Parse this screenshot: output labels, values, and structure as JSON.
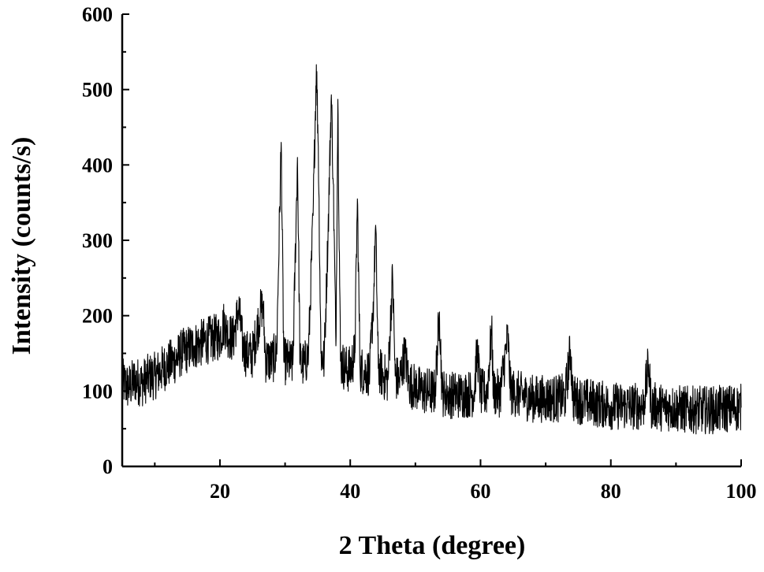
{
  "chart_data": {
    "type": "line",
    "title": "",
    "xlabel": "2 Theta (degree)",
    "ylabel": "Intensity (counts/s)",
    "xlim": [
      5,
      100
    ],
    "ylim": [
      0,
      600
    ],
    "x_ticks": [
      20,
      40,
      60,
      80,
      100
    ],
    "x_minor_ticks": [
      10,
      30,
      50,
      70,
      90
    ],
    "y_ticks": [
      0,
      100,
      200,
      300,
      400,
      500,
      600
    ],
    "y_minor_ticks": [
      50,
      150,
      250,
      350,
      450,
      550
    ],
    "grid": false,
    "legend": "none",
    "line_color": "#000000",
    "series": [
      {
        "points": [
          [
            5,
            112
          ],
          [
            6,
            105
          ],
          [
            7,
            115
          ],
          [
            8,
            110
          ],
          [
            9,
            118
          ],
          [
            10,
            120
          ],
          [
            11,
            128
          ],
          [
            12,
            135
          ],
          [
            13,
            140
          ],
          [
            14,
            150
          ],
          [
            15,
            155
          ],
          [
            16,
            160
          ],
          [
            17,
            163
          ],
          [
            18,
            167
          ],
          [
            19,
            170
          ],
          [
            20,
            172
          ],
          [
            20.7,
            192
          ],
          [
            21,
            178
          ],
          [
            22,
            168
          ],
          [
            22.9,
            210
          ],
          [
            23.5,
            160
          ],
          [
            24,
            150
          ],
          [
            25,
            148
          ],
          [
            26.2,
            205
          ],
          [
            26.6,
            215
          ],
          [
            27,
            142
          ],
          [
            28,
            140
          ],
          [
            28.7,
            150
          ],
          [
            29.4,
            430
          ],
          [
            29.8,
            140
          ],
          [
            30.5,
            138
          ],
          [
            31.2,
            135
          ],
          [
            31.9,
            410
          ],
          [
            32.3,
            135
          ],
          [
            33,
            135
          ],
          [
            33.6,
            150
          ],
          [
            34.3,
            333
          ],
          [
            34.8,
            533
          ],
          [
            35.1,
            425
          ],
          [
            35.5,
            150
          ],
          [
            36,
            140
          ],
          [
            36.6,
            310
          ],
          [
            37.1,
            493
          ],
          [
            37.4,
            375
          ],
          [
            37.8,
            160
          ],
          [
            38.1,
            487
          ],
          [
            38.5,
            140
          ],
          [
            39.2,
            130
          ],
          [
            40,
            128
          ],
          [
            40.7,
            150
          ],
          [
            41.1,
            355
          ],
          [
            41.5,
            130
          ],
          [
            42.2,
            125
          ],
          [
            43,
            125
          ],
          [
            43.6,
            225
          ],
          [
            43.9,
            320
          ],
          [
            44.3,
            130
          ],
          [
            45,
            120
          ],
          [
            45.8,
            115
          ],
          [
            46.5,
            255
          ],
          [
            46.9,
            120
          ],
          [
            47.5,
            112
          ],
          [
            48.4,
            150
          ],
          [
            49,
            110
          ],
          [
            50,
            105
          ],
          [
            51,
            100
          ],
          [
            52,
            100
          ],
          [
            53,
            98
          ],
          [
            53.7,
            205
          ],
          [
            54.1,
            98
          ],
          [
            55,
            95
          ],
          [
            56,
            95
          ],
          [
            57,
            95
          ],
          [
            58,
            96
          ],
          [
            59,
            97
          ],
          [
            59.5,
            155
          ],
          [
            60,
            98
          ],
          [
            61,
            97
          ],
          [
            61.7,
            180
          ],
          [
            62,
            98
          ],
          [
            63,
            97
          ],
          [
            64.2,
            172
          ],
          [
            64.6,
            100
          ],
          [
            65,
            98
          ],
          [
            66,
            95
          ],
          [
            67,
            92
          ],
          [
            68,
            90
          ],
          [
            69,
            90
          ],
          [
            70,
            90
          ],
          [
            71,
            90
          ],
          [
            72,
            90
          ],
          [
            73,
            92
          ],
          [
            73.8,
            155
          ],
          [
            74.2,
            90
          ],
          [
            75,
            88
          ],
          [
            76,
            86
          ],
          [
            77,
            85
          ],
          [
            78,
            83
          ],
          [
            79,
            82
          ],
          [
            80,
            80
          ],
          [
            81,
            80
          ],
          [
            82,
            80
          ],
          [
            83,
            80
          ],
          [
            84,
            80
          ],
          [
            85,
            80
          ],
          [
            85.8,
            135
          ],
          [
            86.2,
            80
          ],
          [
            87,
            80
          ],
          [
            88,
            78
          ],
          [
            89,
            78
          ],
          [
            90,
            77
          ],
          [
            91,
            76
          ],
          [
            92,
            75
          ],
          [
            93,
            75
          ],
          [
            94,
            75
          ],
          [
            95,
            75
          ],
          [
            96,
            75
          ],
          [
            97,
            76
          ],
          [
            98,
            77
          ],
          [
            99,
            78
          ],
          [
            100,
            78
          ]
        ]
      }
    ]
  }
}
